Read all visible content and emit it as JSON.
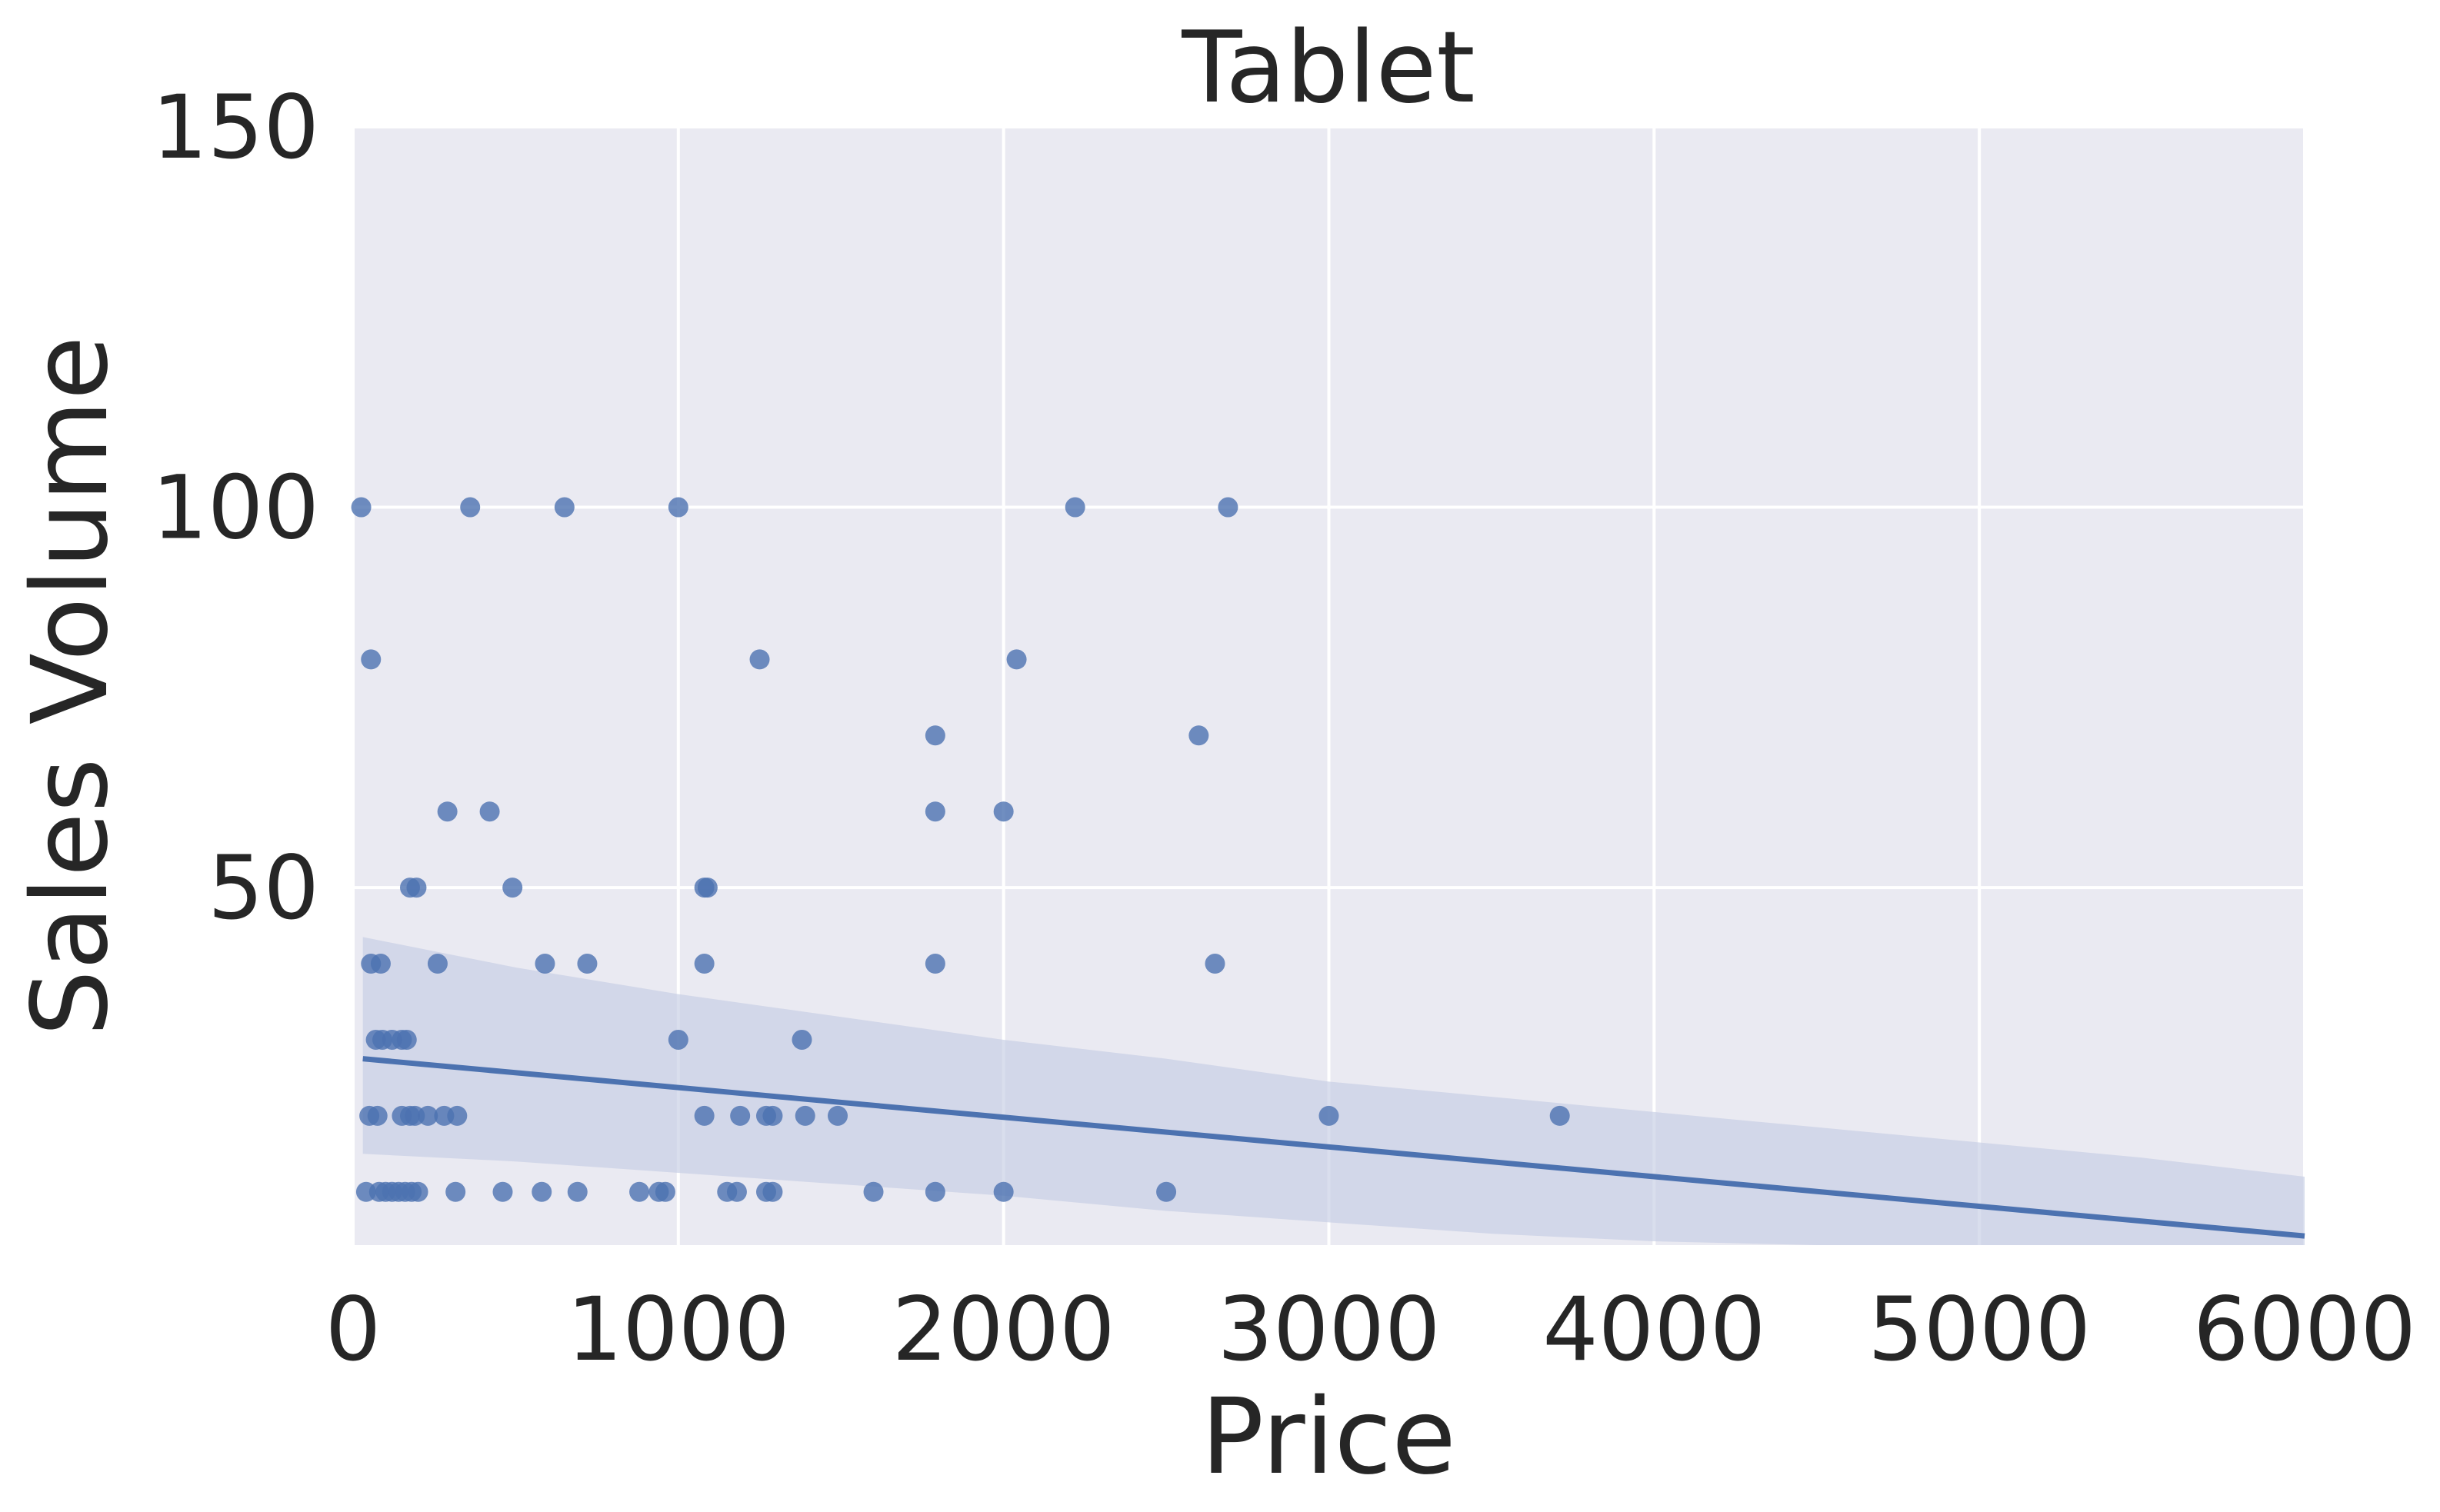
{
  "chart_data": {
    "type": "scatter",
    "title": "Tablet",
    "xlabel": "Price",
    "ylabel": "Sales Volume",
    "xlim": [
      0,
      6000
    ],
    "ylim": [
      3,
      150
    ],
    "xticks": [
      0,
      1000,
      2000,
      3000,
      4000,
      5000,
      6000
    ],
    "yticks": [
      50,
      100,
      150
    ],
    "xtick_labels": [
      "0",
      "1000",
      "2000",
      "3000",
      "4000",
      "5000",
      "6000"
    ],
    "ytick_labels": [
      "50",
      "100",
      "150"
    ],
    "grid": true,
    "legend": "none",
    "colors": {
      "background": "#eaeaf2",
      "grid": "#ffffff",
      "point": "#4c72b0",
      "line": "#4c72b0",
      "band": "#c5cce3"
    },
    "points": [
      {
        "x": 25,
        "y": 100
      },
      {
        "x": 360,
        "y": 100
      },
      {
        "x": 650,
        "y": 100
      },
      {
        "x": 1000,
        "y": 100
      },
      {
        "x": 2220,
        "y": 100
      },
      {
        "x": 2690,
        "y": 100
      },
      {
        "x": 55,
        "y": 80
      },
      {
        "x": 1250,
        "y": 80
      },
      {
        "x": 2040,
        "y": 80
      },
      {
        "x": 1790,
        "y": 70
      },
      {
        "x": 2600,
        "y": 70
      },
      {
        "x": 290,
        "y": 60
      },
      {
        "x": 420,
        "y": 60
      },
      {
        "x": 1790,
        "y": 60
      },
      {
        "x": 2000,
        "y": 60
      },
      {
        "x": 175,
        "y": 50
      },
      {
        "x": 195,
        "y": 50
      },
      {
        "x": 490,
        "y": 50
      },
      {
        "x": 1080,
        "y": 50
      },
      {
        "x": 1090,
        "y": 50
      },
      {
        "x": 55,
        "y": 40
      },
      {
        "x": 85,
        "y": 40
      },
      {
        "x": 260,
        "y": 40
      },
      {
        "x": 590,
        "y": 40
      },
      {
        "x": 720,
        "y": 40
      },
      {
        "x": 1080,
        "y": 40
      },
      {
        "x": 1790,
        "y": 40
      },
      {
        "x": 2650,
        "y": 40
      },
      {
        "x": 70,
        "y": 30
      },
      {
        "x": 90,
        "y": 30
      },
      {
        "x": 120,
        "y": 30
      },
      {
        "x": 150,
        "y": 30
      },
      {
        "x": 165,
        "y": 30
      },
      {
        "x": 1000,
        "y": 30
      },
      {
        "x": 1380,
        "y": 30
      },
      {
        "x": 50,
        "y": 20
      },
      {
        "x": 75,
        "y": 20
      },
      {
        "x": 150,
        "y": 20
      },
      {
        "x": 175,
        "y": 20
      },
      {
        "x": 190,
        "y": 20
      },
      {
        "x": 230,
        "y": 20
      },
      {
        "x": 280,
        "y": 20
      },
      {
        "x": 320,
        "y": 20
      },
      {
        "x": 1080,
        "y": 20
      },
      {
        "x": 1190,
        "y": 20
      },
      {
        "x": 1270,
        "y": 20
      },
      {
        "x": 1290,
        "y": 20
      },
      {
        "x": 1390,
        "y": 20
      },
      {
        "x": 1490,
        "y": 20
      },
      {
        "x": 3000,
        "y": 20
      },
      {
        "x": 3710,
        "y": 20
      },
      {
        "x": 40,
        "y": 10
      },
      {
        "x": 80,
        "y": 10
      },
      {
        "x": 100,
        "y": 10
      },
      {
        "x": 120,
        "y": 10
      },
      {
        "x": 140,
        "y": 10
      },
      {
        "x": 160,
        "y": 10
      },
      {
        "x": 180,
        "y": 10
      },
      {
        "x": 200,
        "y": 10
      },
      {
        "x": 315,
        "y": 10
      },
      {
        "x": 460,
        "y": 10
      },
      {
        "x": 580,
        "y": 10
      },
      {
        "x": 690,
        "y": 10
      },
      {
        "x": 880,
        "y": 10
      },
      {
        "x": 940,
        "y": 10
      },
      {
        "x": 960,
        "y": 10
      },
      {
        "x": 1150,
        "y": 10
      },
      {
        "x": 1180,
        "y": 10
      },
      {
        "x": 1270,
        "y": 10
      },
      {
        "x": 1290,
        "y": 10
      },
      {
        "x": 1600,
        "y": 10
      },
      {
        "x": 1790,
        "y": 10
      },
      {
        "x": 2000,
        "y": 10
      },
      {
        "x": 2500,
        "y": 10
      }
    ],
    "regression": {
      "x": [
        30,
        6000
      ],
      "y": [
        27.5,
        4.2
      ]
    },
    "confidence_band": {
      "x": [
        30,
        500,
        1000,
        1500,
        2000,
        2500,
        3000,
        3500,
        4000,
        4500,
        5000,
        5500,
        6000
      ],
      "upper": [
        43.5,
        39.5,
        36.0,
        33.0,
        30.0,
        27.5,
        24.5,
        22.5,
        20.5,
        18.5,
        16.5,
        14.5,
        12.0
      ],
      "lower": [
        15.0,
        14.0,
        12.5,
        11.0,
        9.5,
        7.5,
        6.0,
        4.5,
        3.5,
        3.0,
        3.0,
        3.0,
        3.0
      ]
    }
  }
}
